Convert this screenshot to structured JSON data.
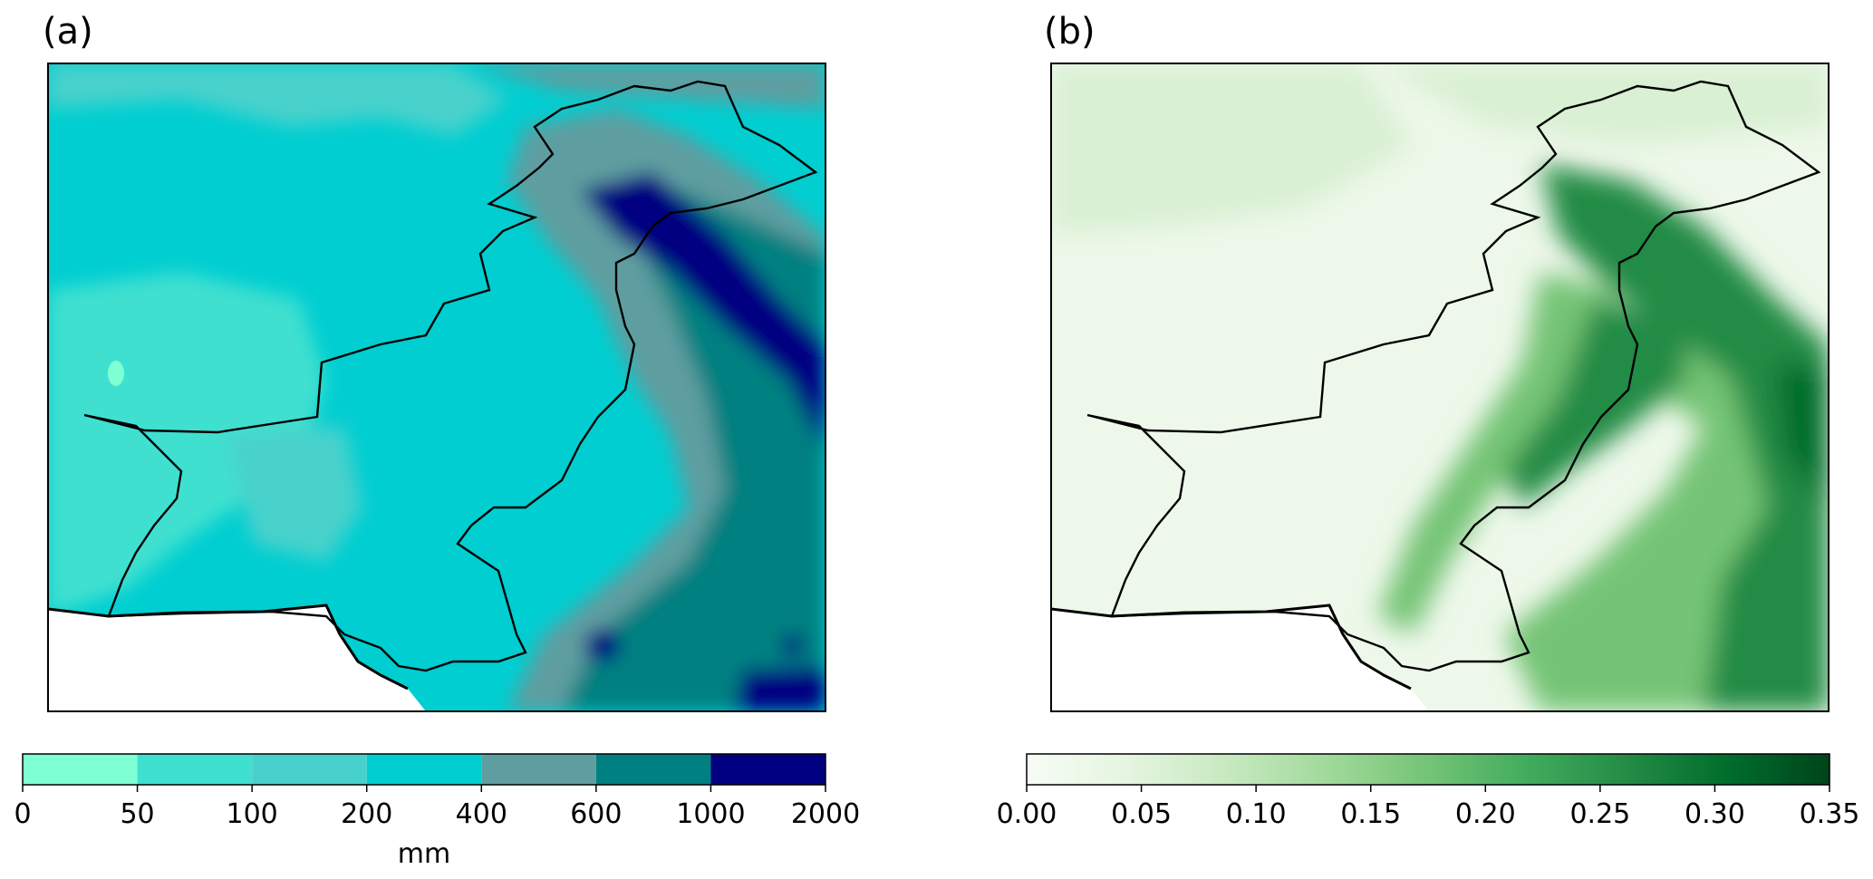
{
  "panels": [
    {
      "label": "(a)",
      "colorbar": {
        "type": "discrete",
        "ticks": [
          "0",
          "50",
          "100",
          "200",
          "400",
          "600",
          "1000",
          "2000"
        ],
        "colors": [
          "#7fffd4",
          "#40e0d0",
          "#48d1cc",
          "#00ced1",
          "#5f9ea0",
          "#008080",
          "#000080"
        ],
        "unit": "mm"
      },
      "map_colors": {
        "base": "#00ced1",
        "west": "#40e0d0",
        "south_west": "#48d1cc",
        "mountains": "#5f9ea0",
        "east": "#008080",
        "peaks": "#000080",
        "spot": "#7fffd4"
      }
    },
    {
      "label": "(b)",
      "colorbar": {
        "type": "continuous",
        "ticks": [
          "0.00",
          "0.05",
          "0.10",
          "0.15",
          "0.20",
          "0.25",
          "0.30",
          "0.35"
        ],
        "colors": [
          "#f7fcf5",
          "#e5f5e0",
          "#c7e9c0",
          "#a1d99b",
          "#74c476",
          "#41ab5d",
          "#238b45",
          "#006d2c",
          "#00441b"
        ],
        "unit": ""
      },
      "map_colors": {
        "base": "#eef8ea",
        "light": "#d9f0d3",
        "medium": "#74c476",
        "dark": "#238b45",
        "darkest": "#006d2c"
      }
    }
  ]
}
